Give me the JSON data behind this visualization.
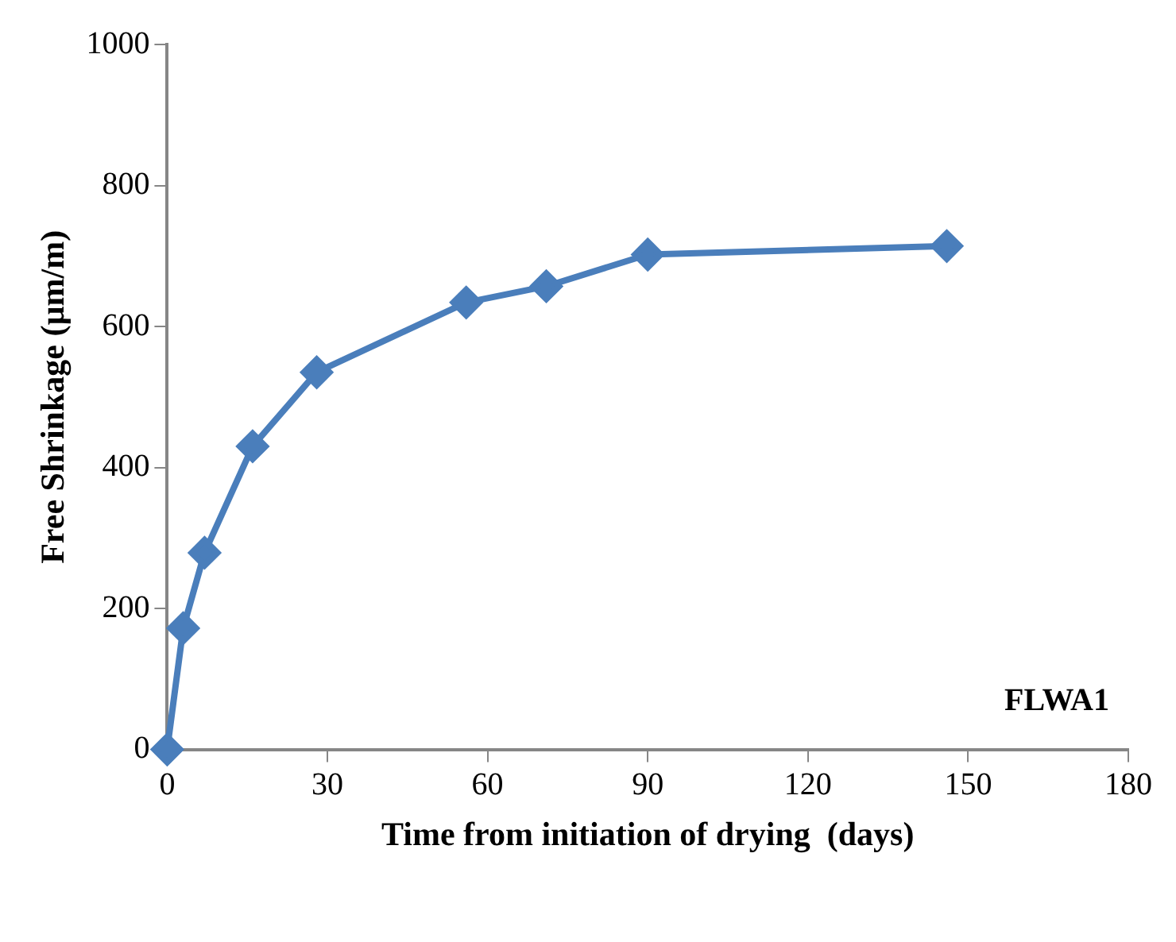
{
  "chart_data": {
    "type": "line",
    "xlabel": "Time from initiation of drying  (days)",
    "ylabel": "Free Shrinkage (µm/m)",
    "x": [
      0,
      3,
      7,
      16,
      28,
      56,
      71,
      90,
      146
    ],
    "series": [
      {
        "color": "#4a7ebb",
        "values": [
          0,
          172,
          279,
          430,
          535,
          634,
          657,
          702,
          714
        ]
      }
    ],
    "xlim": [
      0,
      180
    ],
    "xticks": [
      0,
      30,
      60,
      90,
      120,
      150,
      180
    ],
    "ylim": [
      0,
      1000
    ],
    "yticks": [
      0,
      200,
      400,
      600,
      800,
      1000
    ],
    "grid": false,
    "legend": false,
    "marker": "diamond",
    "line_style": "solid",
    "annotations": [
      "FLWA1"
    ]
  }
}
